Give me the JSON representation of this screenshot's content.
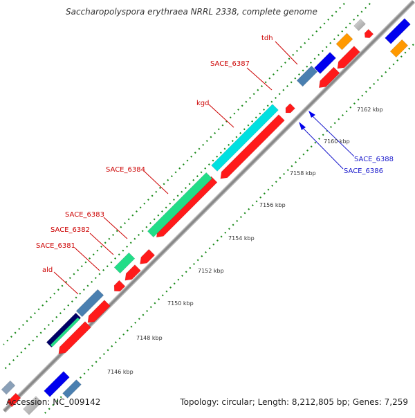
{
  "title": "Saccharopolyspora erythraea NRRL 2338, complete genome",
  "footer": {
    "accession": "Accession: NC_009142",
    "stats": "Topology: circular; Length: 8,212,805 bp; Genes: 7,259"
  },
  "colors": {
    "backbone": "#888888",
    "gc_dots": "#1a8a1a",
    "forward_feature": "#ff1a1a",
    "reverse_feature": "#0000ee",
    "label_forward": "#cc0000",
    "label_reverse": "#1a1acc",
    "cds_teal": "#00e0e0",
    "cds_green": "#22dd88",
    "cds_steelblue": "#4a7fb0",
    "cds_navy": "#000066",
    "cds_orange": "#ff9900"
  },
  "kbp_ticks": [
    "7146 kbp",
    "7148 kbp",
    "7150 kbp",
    "7152 kbp",
    "7154 kbp",
    "7156 kbp",
    "7158 kbp",
    "7160 kbp",
    "7162 kbp"
  ],
  "forward_genes": [
    "ald",
    "SACE_6381",
    "SACE_6382",
    "SACE_6383",
    "SACE_6384",
    "kgd",
    "SACE_6387",
    "tdh"
  ],
  "reverse_genes": [
    "SACE_6386",
    "SACE_6388"
  ]
}
